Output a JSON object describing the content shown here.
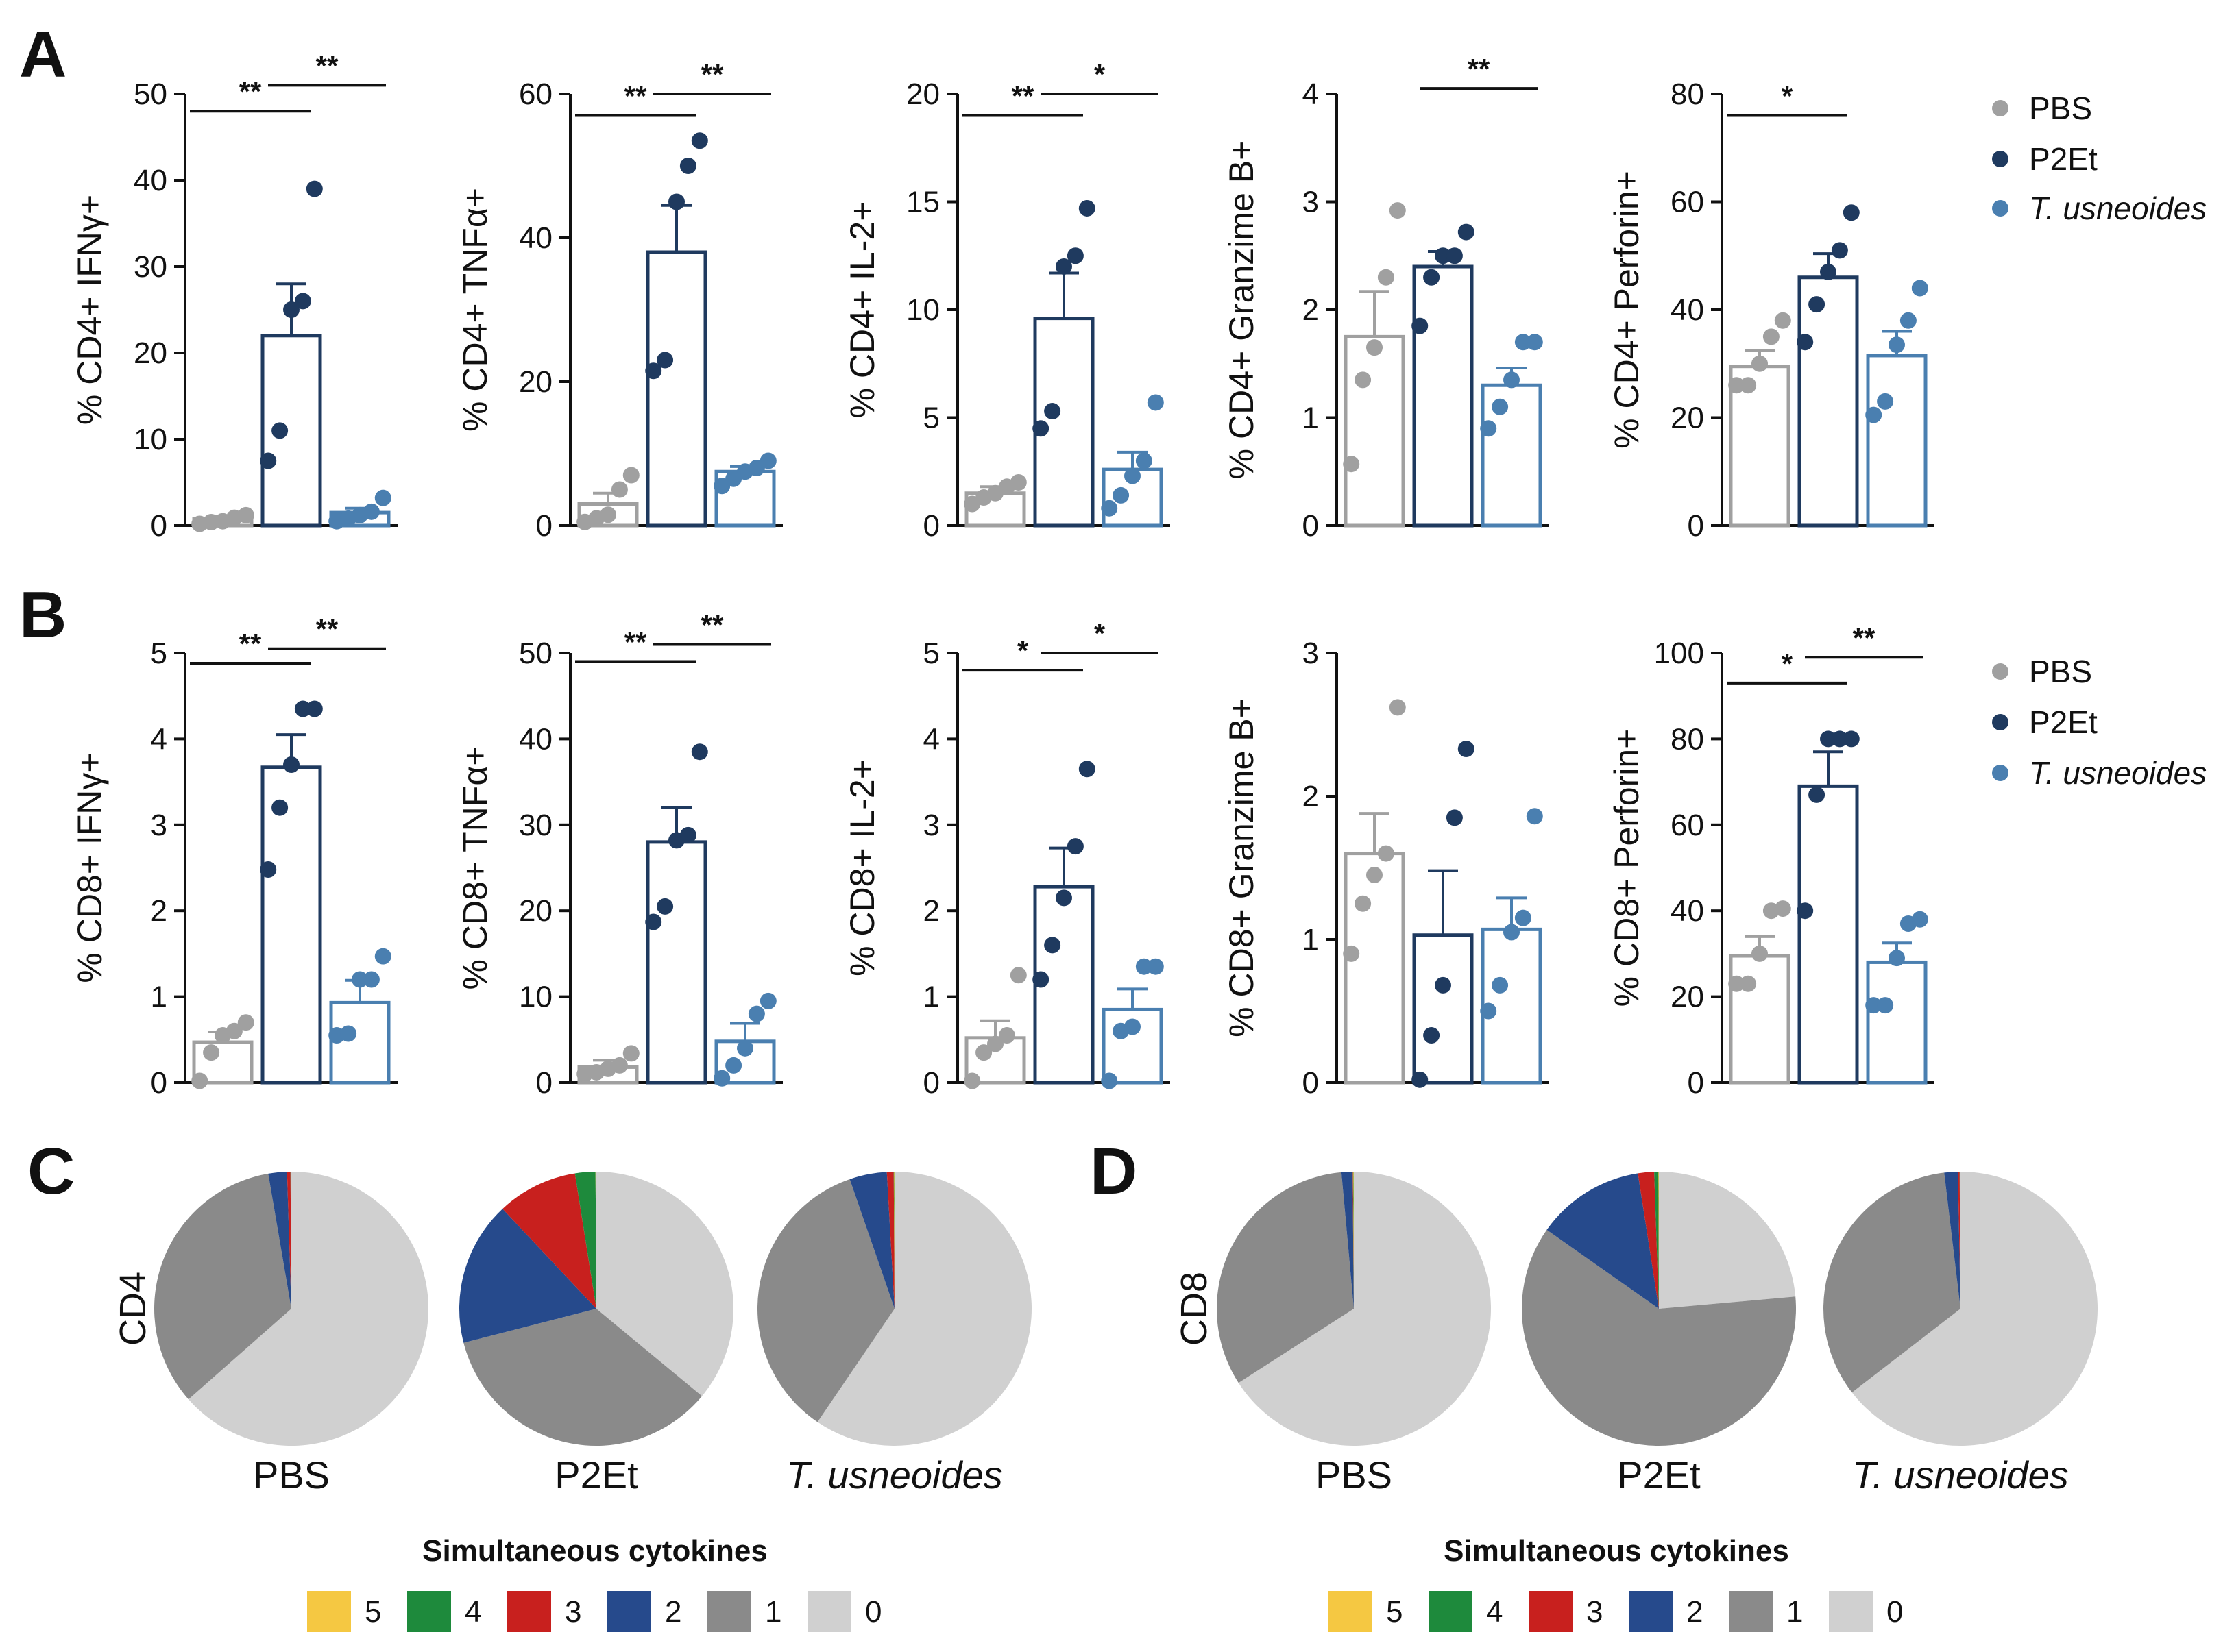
{
  "panel_letters": [
    "A",
    "B",
    "C",
    "D"
  ],
  "colors": {
    "PBS": "#a0a0a0",
    "P2Et": "#1f3a5f",
    "T. usneoides": "#4a7fb0",
    "cyt_5": "#f5c842",
    "cyt_4": "#1e8a3c",
    "cyt_3": "#c8201e",
    "cyt_2": "#264a8c",
    "cyt_1": "#8a8a8a",
    "cyt_0": "#d0d0d0"
  },
  "legend_groups": [
    "PBS",
    "P2Et",
    "T. usneoides"
  ],
  "chart_data": [
    {
      "id": "A1",
      "row": "A",
      "type": "bar",
      "ylabel": "% CD4+ IFNγ+",
      "ylim": [
        0,
        50
      ],
      "ticks": [
        0,
        10,
        20,
        30,
        40,
        50
      ],
      "categories": [
        "PBS",
        "P2Et",
        "T. usneoides"
      ],
      "means": [
        0.8,
        22,
        1.5
      ],
      "sem": [
        0.3,
        6,
        0.5
      ],
      "points": [
        [
          0.2,
          0.4,
          0.5,
          0.9,
          1.2
        ],
        [
          7.5,
          11,
          25,
          26,
          39
        ],
        [
          0.5,
          0.8,
          1.2,
          1.6,
          3.2
        ]
      ],
      "significance": [
        {
          "from": 0,
          "to": 1,
          "label": "**",
          "y": 48
        },
        {
          "from": 1,
          "to": 2,
          "label": "**",
          "y": 51
        }
      ]
    },
    {
      "id": "A2",
      "row": "A",
      "type": "bar",
      "ylabel": "% CD4+ TNFα+",
      "ylim": [
        0,
        60
      ],
      "ticks": [
        0,
        20,
        40,
        60
      ],
      "categories": [
        "PBS",
        "P2Et",
        "T. usneoides"
      ],
      "means": [
        3,
        38,
        7.5
      ],
      "sem": [
        1.5,
        6.5,
        0.7
      ],
      "points": [
        [
          0.5,
          1,
          1.5,
          5,
          7
        ],
        [
          21.5,
          23,
          45,
          50,
          53.5
        ],
        [
          5.5,
          6.5,
          7.5,
          8,
          9
        ]
      ],
      "significance": [
        {
          "from": 0,
          "to": 1,
          "label": "**",
          "y": 57
        },
        {
          "from": 1,
          "to": 2,
          "label": "**",
          "y": 60
        }
      ]
    },
    {
      "id": "A3",
      "row": "A",
      "type": "bar",
      "ylabel": "% CD4+ IL-2+",
      "ylim": [
        0,
        20
      ],
      "ticks": [
        0,
        5,
        10,
        15,
        20
      ],
      "categories": [
        "PBS",
        "P2Et",
        "T. usneoides"
      ],
      "means": [
        1.5,
        9.6,
        2.6
      ],
      "sem": [
        0.3,
        2.1,
        0.8
      ],
      "points": [
        [
          1,
          1.3,
          1.5,
          1.8,
          2
        ],
        [
          4.5,
          5.3,
          12,
          12.5,
          14.7
        ],
        [
          0.8,
          1.4,
          2.3,
          3,
          5.7
        ]
      ],
      "significance": [
        {
          "from": 0,
          "to": 1,
          "label": "**",
          "y": 19
        },
        {
          "from": 1,
          "to": 2,
          "label": "*",
          "y": 20
        }
      ]
    },
    {
      "id": "A4",
      "row": "A",
      "type": "bar",
      "ylabel": "% CD4+ Granzime B+",
      "ylim": [
        0,
        4
      ],
      "ticks": [
        0,
        1,
        2,
        3,
        4
      ],
      "categories": [
        "PBS",
        "P2Et",
        "T. usneoides"
      ],
      "means": [
        1.75,
        2.4,
        1.3
      ],
      "sem": [
        0.42,
        0.14,
        0.16
      ],
      "points": [
        [
          0.57,
          1.35,
          1.65,
          2.3,
          2.92
        ],
        [
          1.85,
          2.3,
          2.5,
          2.5,
          2.72
        ],
        [
          0.9,
          1.1,
          1.35,
          1.7,
          1.7
        ]
      ],
      "significance": [
        {
          "from": 1,
          "to": 2,
          "label": "**",
          "y": 4.05
        }
      ]
    },
    {
      "id": "A5",
      "row": "A",
      "type": "bar",
      "ylabel": "% CD4+ Perforin+",
      "ylim": [
        0,
        80
      ],
      "ticks": [
        0,
        20,
        40,
        60,
        80
      ],
      "categories": [
        "PBS",
        "P2Et",
        "T. usneoides"
      ],
      "means": [
        29.5,
        46,
        31.5
      ],
      "sem": [
        3,
        4.4,
        4.5
      ],
      "points": [
        [
          26,
          26,
          30,
          35,
          38
        ],
        [
          34,
          41,
          47,
          51,
          58
        ],
        [
          20.5,
          23,
          33.5,
          38,
          44
        ]
      ],
      "significance": [
        {
          "from": 0,
          "to": 1,
          "label": "*",
          "y": 76
        }
      ]
    },
    {
      "id": "B1",
      "row": "B",
      "type": "bar",
      "ylabel": "% CD8+ IFNγ+",
      "ylim": [
        0,
        5
      ],
      "ticks": [
        0,
        1,
        2,
        3,
        4,
        5
      ],
      "categories": [
        "PBS",
        "P2Et",
        "T. usneoides"
      ],
      "means": [
        0.47,
        3.67,
        0.93
      ],
      "sem": [
        0.12,
        0.38,
        0.26
      ],
      "points": [
        [
          0.02,
          0.35,
          0.55,
          0.6,
          0.7
        ],
        [
          2.48,
          3.2,
          3.7,
          4.35,
          4.35
        ],
        [
          0.55,
          0.57,
          1.2,
          1.2,
          1.47
        ]
      ],
      "significance": [
        {
          "from": 0,
          "to": 1,
          "label": "**",
          "y": 4.88
        },
        {
          "from": 1,
          "to": 2,
          "label": "**",
          "y": 5.05
        }
      ]
    },
    {
      "id": "B2",
      "row": "B",
      "type": "bar",
      "ylabel": "% CD8+ TNFα+",
      "ylim": [
        0,
        50
      ],
      "ticks": [
        0,
        10,
        20,
        30,
        40,
        50
      ],
      "categories": [
        "PBS",
        "P2Et",
        "T. usneoides"
      ],
      "means": [
        1.8,
        28,
        4.8
      ],
      "sem": [
        0.8,
        4,
        2.1
      ],
      "points": [
        [
          1,
          1.2,
          1.6,
          2,
          3.4
        ],
        [
          18.7,
          20.5,
          28.2,
          28.8,
          38.5
        ],
        [
          0.5,
          2,
          4,
          8,
          9.5
        ]
      ],
      "significance": [
        {
          "from": 0,
          "to": 1,
          "label": "**",
          "y": 49
        },
        {
          "from": 1,
          "to": 2,
          "label": "**",
          "y": 51
        }
      ]
    },
    {
      "id": "B3",
      "row": "B",
      "type": "bar",
      "ylabel": "% CD8+ IL-2+",
      "ylim": [
        0,
        5
      ],
      "ticks": [
        0,
        1,
        2,
        3,
        4,
        5
      ],
      "categories": [
        "PBS",
        "P2Et",
        "T. usneoides"
      ],
      "means": [
        0.52,
        2.28,
        0.85
      ],
      "sem": [
        0.2,
        0.45,
        0.24
      ],
      "points": [
        [
          0.02,
          0.35,
          0.45,
          0.55,
          1.25
        ],
        [
          1.2,
          1.6,
          2.15,
          2.75,
          3.65
        ],
        [
          0.02,
          0.6,
          0.65,
          1.35,
          1.35
        ]
      ],
      "significance": [
        {
          "from": 0,
          "to": 1,
          "label": "*",
          "y": 4.8
        },
        {
          "from": 1,
          "to": 2,
          "label": "*",
          "y": 5.0
        }
      ]
    },
    {
      "id": "B4",
      "row": "B",
      "type": "bar",
      "ylabel": "% CD8+ Granzime B+",
      "ylim": [
        0,
        3
      ],
      "ticks": [
        0,
        1,
        2,
        3
      ],
      "categories": [
        "PBS",
        "P2Et",
        "T. usneoides"
      ],
      "means": [
        1.6,
        1.03,
        1.07
      ],
      "sem": [
        0.28,
        0.45,
        0.22
      ],
      "points": [
        [
          0.9,
          1.25,
          1.45,
          1.6,
          2.62
        ],
        [
          0.02,
          0.33,
          0.68,
          1.85,
          2.33
        ],
        [
          0.5,
          0.68,
          1.05,
          1.15,
          1.86
        ]
      ],
      "significance": []
    },
    {
      "id": "B5",
      "row": "B",
      "type": "bar",
      "ylabel": "% CD8+ Perforin+",
      "ylim": [
        0,
        100
      ],
      "ticks": [
        0,
        20,
        40,
        60,
        80,
        100
      ],
      "categories": [
        "PBS",
        "P2Et",
        "T. usneoides"
      ],
      "means": [
        29.5,
        69,
        28
      ],
      "sem": [
        4.5,
        8,
        4.5
      ],
      "points": [
        [
          23,
          23,
          30,
          40,
          40.5
        ],
        [
          40,
          67,
          80,
          80,
          80
        ],
        [
          18,
          18,
          29,
          37,
          38
        ]
      ],
      "significance": [
        {
          "from": 0,
          "to": 1,
          "label": "*",
          "y": 93
        },
        {
          "from": 1,
          "to": 2,
          "label": "**",
          "y": 99
        }
      ]
    },
    {
      "id": "C",
      "type": "pie",
      "row_label": "CD4",
      "pies": [
        {
          "label": "PBS",
          "italic": false,
          "slices": [
            {
              "k": "0",
              "v": 63.5
            },
            {
              "k": "1",
              "v": 33.8
            },
            {
              "k": "2",
              "v": 2.2
            },
            {
              "k": "3",
              "v": 0.4
            },
            {
              "k": "4",
              "v": 0.05
            },
            {
              "k": "5",
              "v": 0.05
            }
          ]
        },
        {
          "label": "P2Et",
          "italic": false,
          "slices": [
            {
              "k": "0",
              "v": 36
            },
            {
              "k": "1",
              "v": 35
            },
            {
              "k": "2",
              "v": 17
            },
            {
              "k": "3",
              "v": 9.5
            },
            {
              "k": "4",
              "v": 2.4
            },
            {
              "k": "5",
              "v": 0.1
            }
          ]
        },
        {
          "label": "T. usneoides",
          "italic": true,
          "slices": [
            {
              "k": "0",
              "v": 59.5
            },
            {
              "k": "1",
              "v": 35.2
            },
            {
              "k": "2",
              "v": 4.4
            },
            {
              "k": "3",
              "v": 0.8
            },
            {
              "k": "4",
              "v": 0.05
            },
            {
              "k": "5",
              "v": 0.05
            }
          ]
        }
      ]
    },
    {
      "id": "D",
      "type": "pie",
      "row_label": "CD8",
      "pies": [
        {
          "label": "PBS",
          "italic": false,
          "slices": [
            {
              "k": "0",
              "v": 66
            },
            {
              "k": "1",
              "v": 32.7
            },
            {
              "k": "2",
              "v": 1.3
            },
            {
              "k": "3",
              "v": 0.05
            },
            {
              "k": "4",
              "v": 0.05
            },
            {
              "k": "5",
              "v": 0.05
            }
          ]
        },
        {
          "label": "P2Et",
          "italic": false,
          "slices": [
            {
              "k": "0",
              "v": 23.6
            },
            {
              "k": "1",
              "v": 61.2
            },
            {
              "k": "2",
              "v": 12.8
            },
            {
              "k": "3",
              "v": 1.9
            },
            {
              "k": "4",
              "v": 0.5
            },
            {
              "k": "5",
              "v": 0.05
            }
          ]
        },
        {
          "label": "T. usneoides",
          "italic": true,
          "slices": [
            {
              "k": "0",
              "v": 64.6
            },
            {
              "k": "1",
              "v": 33.6
            },
            {
              "k": "2",
              "v": 1.6
            },
            {
              "k": "3",
              "v": 0.2
            },
            {
              "k": "4",
              "v": 0.05
            },
            {
              "k": "5",
              "v": 0.05
            }
          ]
        }
      ]
    }
  ],
  "cytokine_key": {
    "title": "Simultaneous cytokines",
    "entries": [
      "5",
      "4",
      "3",
      "2",
      "1",
      "0"
    ]
  }
}
